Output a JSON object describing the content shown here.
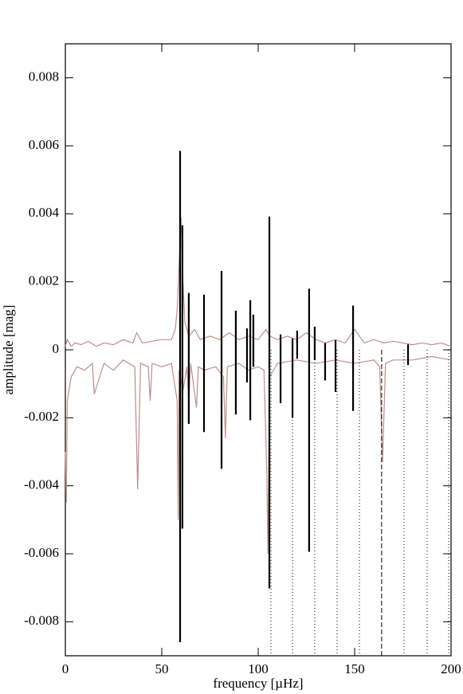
{
  "chart_data": {
    "type": "spectrum",
    "xlabel": "frequency [µHz]",
    "ylabel": "amplitude [mag]",
    "xlim": [
      0,
      200
    ],
    "xticks": [
      0,
      50,
      100,
      150,
      200
    ],
    "ylim": [
      -0.009,
      0.009
    ],
    "yticks": [
      -0.008,
      -0.006,
      -0.004,
      -0.002,
      0,
      0.002,
      0.004,
      0.006,
      0.008
    ],
    "traces": [
      {
        "color": "#bc8f8f",
        "x": [
          0,
          1,
          3,
          5,
          8,
          12,
          16,
          20,
          25,
          30,
          35,
          37,
          40,
          45,
          50,
          55,
          57,
          58,
          59,
          60,
          61,
          62,
          64,
          67,
          70,
          75,
          80,
          85,
          90,
          95,
          100,
          104,
          106,
          110,
          115,
          120,
          125,
          130,
          135,
          140,
          145,
          150,
          155,
          160,
          165,
          170,
          175,
          180,
          185,
          190,
          195,
          200
        ],
        "values": [
          0.0001,
          0.0003,
          0.0001,
          0.0002,
          0.00015,
          0.00025,
          0.0001,
          0.0002,
          0.00015,
          0.0003,
          0.0002,
          0.0005,
          0.0002,
          0.00025,
          0.0003,
          0.0003,
          0.0006,
          0.0012,
          0.0025,
          0.0039,
          0.002,
          0.0008,
          0.0004,
          0.0006,
          0.0003,
          0.0004,
          0.0003,
          0.0005,
          0.0003,
          0.0004,
          0.0003,
          0.0006,
          0.0004,
          0.0003,
          0.0004,
          0.0003,
          0.0005,
          0.0003,
          0.0002,
          0.0003,
          0.0002,
          0.0006,
          0.0002,
          0.0003,
          0.0002,
          0.00025,
          0.0002,
          0.00015,
          0.0002,
          0.00015,
          0.0002,
          0.0001
        ]
      },
      {
        "color": "#bc8f8f",
        "x": [
          0,
          0.5,
          1,
          3,
          6,
          10,
          14,
          15,
          20,
          25,
          30,
          36,
          37.5,
          39,
          43,
          44,
          45,
          50,
          55,
          58,
          58.5,
          59,
          61,
          63,
          64,
          65,
          68,
          69,
          72,
          78,
          82,
          83,
          84,
          90,
          95,
          100,
          103,
          104.5,
          105,
          106,
          110,
          120,
          130,
          140,
          150,
          160,
          163,
          164.5,
          166,
          170,
          180,
          190,
          200
        ],
        "values": [
          -0.003,
          -0.0045,
          -0.0015,
          -0.0008,
          -0.0005,
          -0.0006,
          -0.0004,
          -0.0013,
          -0.0004,
          -0.0006,
          -0.0003,
          -0.0005,
          -0.0041,
          -0.0004,
          -0.0005,
          -0.0015,
          -0.0004,
          -0.0005,
          -0.0004,
          -0.0015,
          -0.005,
          -0.0006,
          -0.0012,
          -0.0005,
          -0.0015,
          -0.0004,
          -0.0017,
          -0.0005,
          -0.0006,
          -0.0005,
          -0.0008,
          -0.0026,
          -0.0005,
          -0.0004,
          -0.0006,
          -0.0005,
          -0.0006,
          -0.0037,
          -0.006,
          -0.0008,
          -0.0004,
          -0.0003,
          -0.0004,
          -0.0003,
          -0.0004,
          -0.0003,
          -0.0005,
          -0.0033,
          -0.0004,
          -0.0003,
          -0.0003,
          -0.0002,
          -0.0003
        ]
      }
    ],
    "sticks": {
      "color": "#000000",
      "x": [
        59.5,
        60.7,
        64,
        71.9,
        81,
        88.4,
        94.2,
        95.9,
        97.5,
        105.8,
        111.6,
        117.8,
        120.2,
        126.4,
        129.3,
        134.7,
        140.1,
        149.2,
        177.7
      ],
      "top": [
        0.00585,
        0.00366,
        0.00167,
        0.00162,
        0.00232,
        0.00115,
        0.00063,
        0.00146,
        0.00103,
        0.00392,
        0.00045,
        0.00033,
        0.00056,
        0.0018,
        0.00068,
        0.0002,
        0.00028,
        0.0013,
        0.00016
      ],
      "bottom": [
        -0.0086,
        -0.00526,
        -0.00218,
        -0.00242,
        -0.0035,
        -0.0019,
        -0.00096,
        -0.00207,
        -0.0005,
        -0.00702,
        -0.00157,
        -0.002,
        -0.00026,
        -0.00594,
        -0.0003,
        -0.0009,
        -0.00124,
        -0.0018,
        -0.00045
      ]
    },
    "guide_lines": {
      "color": "#000000",
      "x": [
        106.6,
        117.8,
        129.3,
        140.9,
        152.5,
        164,
        175.6,
        187.6,
        198.8
      ],
      "styles": [
        "dotted",
        "dotted",
        "dotted",
        "dotted",
        "dotted",
        "dashed",
        "dotted",
        "dotted",
        "dotted"
      ]
    }
  }
}
